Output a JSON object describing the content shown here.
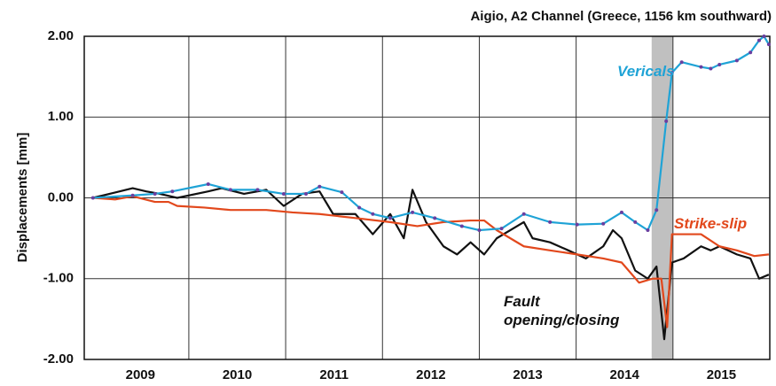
{
  "chart_data": {
    "type": "line",
    "title": "Aigio, A2 Channel (Greece, 1156 km southward)",
    "ylabel": "Displacements [mm]",
    "xlim": [
      2008.92,
      2016.0
    ],
    "ylim": [
      -2,
      2
    ],
    "yticks": [
      {
        "value": -2,
        "label": "-2.00"
      },
      {
        "value": -1,
        "label": "-1.00"
      },
      {
        "value": 0,
        "label": "0.00"
      },
      {
        "value": 1,
        "label": "1.00"
      },
      {
        "value": 2,
        "label": "2.00"
      }
    ],
    "xticks": [
      {
        "value": 2009.5,
        "label": "2009"
      },
      {
        "value": 2010.5,
        "label": "2010"
      },
      {
        "value": 2011.5,
        "label": "2011"
      },
      {
        "value": 2012.5,
        "label": "2012"
      },
      {
        "value": 2013.5,
        "label": "2013"
      },
      {
        "value": 2014.5,
        "label": "2014"
      },
      {
        "value": 2015.5,
        "label": "2015"
      }
    ],
    "x_gridlines": [
      2010,
      2011,
      2012,
      2013,
      2014,
      2015
    ],
    "grid": true,
    "shaded_region": [
      2014.78,
      2015.0
    ],
    "shaded_color": "#c0c0c0",
    "series": [
      {
        "name": "Vericals",
        "color": "#1fa3d6",
        "marker_color": "#6a3fa0",
        "x": [
          2009.01,
          2009.42,
          2009.65,
          2009.83,
          2010.2,
          2010.43,
          2010.71,
          2010.98,
          2011.21,
          2011.35,
          2011.58,
          2011.76,
          2011.9,
          2012.08,
          2012.31,
          2012.54,
          2012.82,
          2013.0,
          2013.23,
          2013.46,
          2013.73,
          2014.01,
          2014.28,
          2014.47,
          2014.61,
          2014.74,
          2014.83,
          2014.93,
          2014.99,
          2015.09,
          2015.29,
          2015.39,
          2015.48,
          2015.66,
          2015.8,
          2015.89,
          2015.94,
          2015.99
        ],
        "values": [
          0,
          0.03,
          0.05,
          0.08,
          0.17,
          0.1,
          0.1,
          0.05,
          0.05,
          0.14,
          0.07,
          -0.12,
          -0.2,
          -0.25,
          -0.18,
          -0.25,
          -0.35,
          -0.4,
          -0.38,
          -0.2,
          -0.3,
          -0.33,
          -0.32,
          -0.18,
          -0.3,
          -0.4,
          -0.15,
          0.95,
          1.55,
          1.68,
          1.62,
          1.6,
          1.65,
          1.7,
          1.8,
          1.95,
          2.0,
          1.9
        ]
      },
      {
        "name": "Strike-slip",
        "color": "#e2481c",
        "x": [
          2009.01,
          2009.24,
          2009.42,
          2009.65,
          2009.79,
          2009.88,
          2010.16,
          2010.43,
          2010.8,
          2011.07,
          2011.35,
          2011.72,
          2012.08,
          2012.36,
          2012.63,
          2012.91,
          2013.05,
          2013.18,
          2013.46,
          2013.73,
          2014.01,
          2014.28,
          2014.47,
          2014.65,
          2014.79,
          2014.88,
          2014.94,
          2014.99,
          2015.11,
          2015.29,
          2015.48,
          2015.66,
          2015.84,
          2015.99
        ],
        "values": [
          0,
          -0.02,
          0.02,
          -0.05,
          -0.05,
          -0.1,
          -0.12,
          -0.15,
          -0.15,
          -0.18,
          -0.2,
          -0.25,
          -0.3,
          -0.35,
          -0.3,
          -0.28,
          -0.28,
          -0.4,
          -0.6,
          -0.65,
          -0.7,
          -0.75,
          -0.8,
          -1.05,
          -1.0,
          -1.0,
          -1.6,
          -0.45,
          -0.45,
          -0.45,
          -0.6,
          -0.65,
          -0.72,
          -0.7
        ]
      },
      {
        "name": "Fault opening/closing",
        "color": "#111111",
        "x": [
          2009.01,
          2009.42,
          2009.56,
          2009.7,
          2009.88,
          2010.2,
          2010.34,
          2010.57,
          2010.8,
          2010.98,
          2011.17,
          2011.35,
          2011.49,
          2011.72,
          2011.9,
          2012.08,
          2012.22,
          2012.31,
          2012.45,
          2012.63,
          2012.77,
          2012.91,
          2013.05,
          2013.18,
          2013.46,
          2013.55,
          2013.73,
          2013.92,
          2014.1,
          2014.28,
          2014.38,
          2014.47,
          2014.61,
          2014.74,
          2014.83,
          2014.91,
          2014.99,
          2015.11,
          2015.29,
          2015.39,
          2015.48,
          2015.66,
          2015.8,
          2015.89,
          2015.99
        ],
        "values": [
          0,
          0.12,
          0.08,
          0.05,
          0.0,
          0.08,
          0.12,
          0.05,
          0.1,
          -0.1,
          0.05,
          0.08,
          -0.2,
          -0.2,
          -0.45,
          -0.2,
          -0.5,
          0.1,
          -0.3,
          -0.6,
          -0.7,
          -0.55,
          -0.7,
          -0.5,
          -0.3,
          -0.5,
          -0.55,
          -0.65,
          -0.75,
          -0.6,
          -0.4,
          -0.5,
          -0.9,
          -1.0,
          -0.85,
          -1.75,
          -0.8,
          -0.75,
          -0.6,
          -0.65,
          -0.6,
          -0.7,
          -0.75,
          -1.0,
          -0.95
        ]
      }
    ]
  }
}
